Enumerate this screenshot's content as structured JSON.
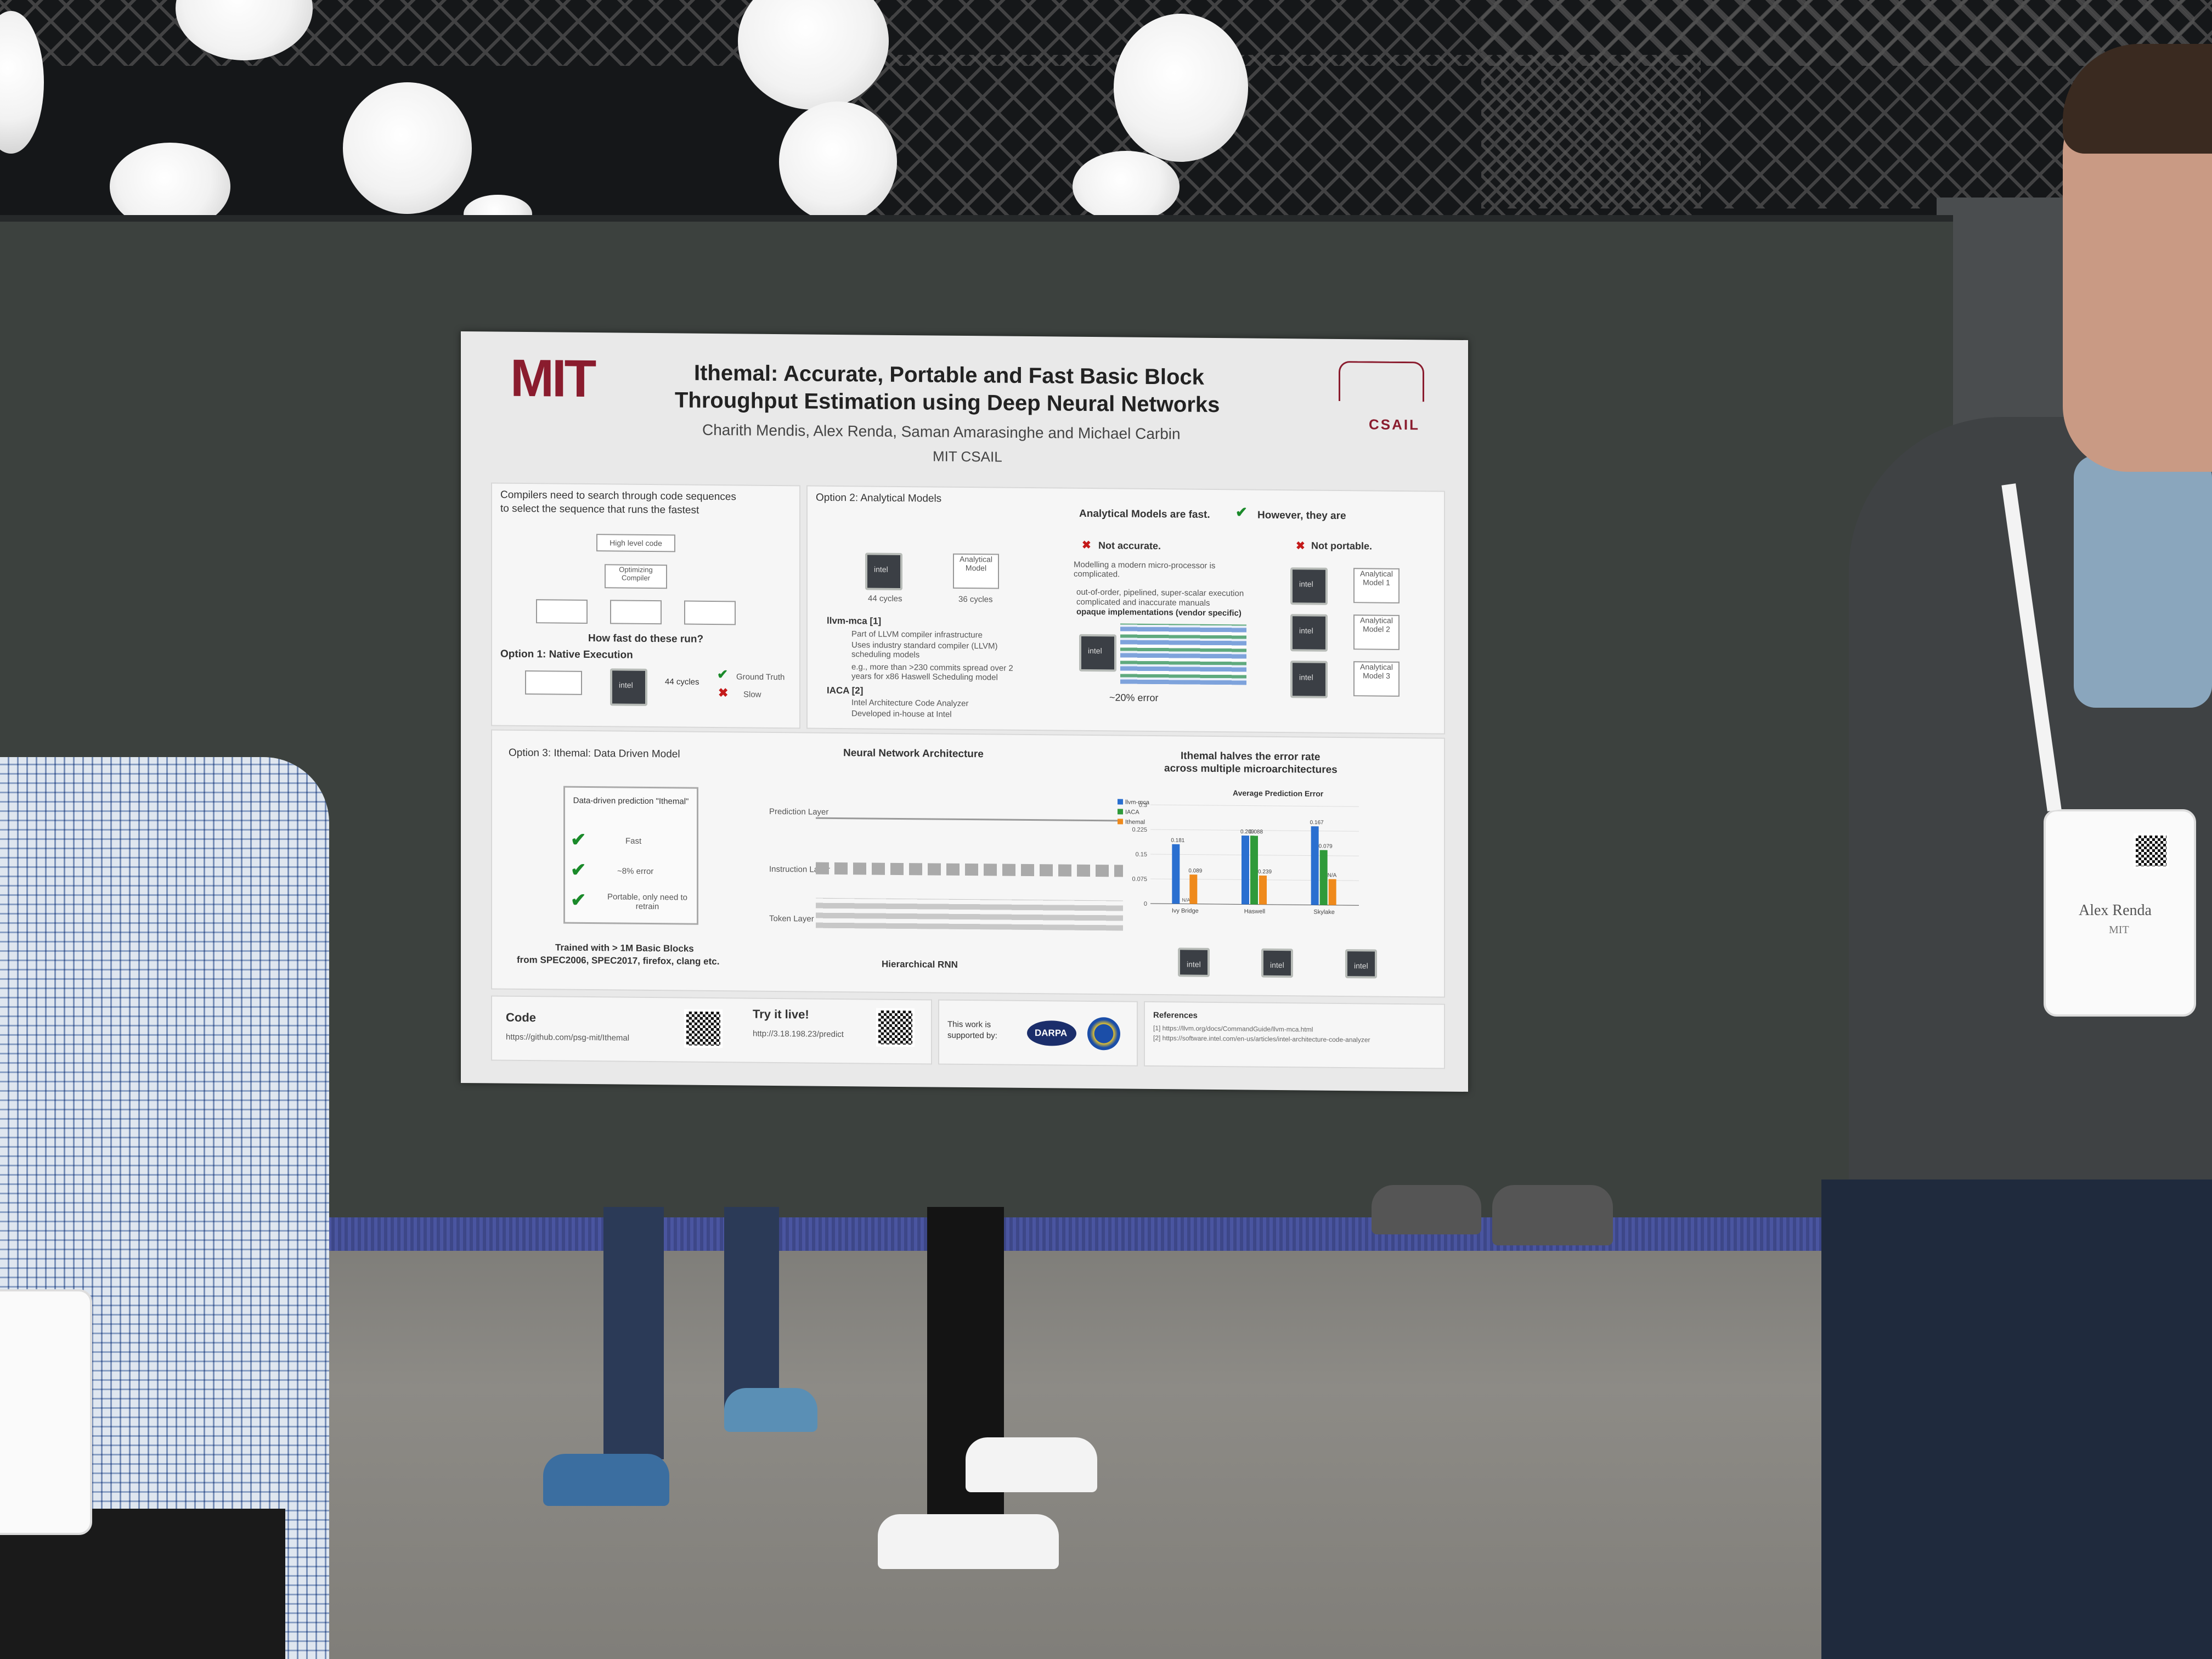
{
  "poster": {
    "logo_left": "MIT",
    "logo_right": "CSAIL",
    "title_line1": "Ithemal: Accurate, Portable and Fast Basic Block",
    "title_line2": "Throughput Estimation using Deep Neural Networks",
    "authors": "Charith Mendis, Alex Renda, Saman Amarasinghe and Michael Carbin",
    "affiliation": "MIT CSAIL",
    "intro": {
      "heading_line1": "Compilers need to search through code sequences",
      "heading_line2": "to select the sequence that runs the fastest",
      "box_high_level": "High level code",
      "box_compiler": "Optimizing Compiler",
      "question": "How fast do these run?",
      "option1": "Option 1: Native Execution",
      "cycles": "44 cycles",
      "ground_truth": "Ground Truth",
      "slow": "Slow"
    },
    "analytical": {
      "heading": "Option 2: Analytical Models",
      "fast_line": "Analytical Models are fast.",
      "however": "However,  they are",
      "not_accurate": "Not accurate.",
      "not_portable": "Not portable.",
      "left_cycles": "44 cycles",
      "right_cycles": "36 cycles",
      "analytical_model": "Analytical Model",
      "llvm_heading": "llvm-mca [1]",
      "llvm_bullets": [
        "Part of LLVM compiler infrastructure",
        "Uses industry standard compiler (LLVM) scheduling models",
        "e.g., more than >230 commits spread over 2 years for x86 Haswell Scheduling model"
      ],
      "iaca_heading": "IACA [2]",
      "iaca_bullets": [
        "Intel Architecture Code Analyzer",
        "Developed in-house at Intel"
      ],
      "modelling_note": "Modelling a modern micro-processor is complicated.",
      "complications": [
        "out-of-order, pipelined, super-scalar execution",
        "complicated and inaccurate manuals",
        "opaque implementations (vendor specific)"
      ],
      "error": "~20% error",
      "models": [
        "Analytical Model 1",
        "Analytical Model 2",
        "Analytical Model 3"
      ]
    },
    "ithemal": {
      "heading": "Option 3: Ithemal: Data Driven Model",
      "box_title": "Data-driven prediction \"Ithemal\"",
      "features": [
        "Fast",
        "~8% error",
        "Portable, only need to retrain"
      ],
      "trained_line1": "Trained with > 1M Basic Blocks",
      "trained_line2": "from SPEC2006, SPEC2017, firefox, clang etc.",
      "nn_heading": "Neural Network Architecture",
      "nn_caption": "Hierarchical RNN",
      "layers": [
        "Prediction Layer",
        "Instruction Layer",
        "Token Layer"
      ],
      "halves_line1": "Ithemal halves the error rate",
      "halves_line2": "across multiple microarchitectures"
    },
    "footer": {
      "code_label": "Code",
      "code_url": "https://github.com/psg-mit/Ithemal",
      "try_label": "Try it live!",
      "try_url": "http://3.18.198.23/predict",
      "support_line1": "This work is",
      "support_line2": "supported by:",
      "darpa": "DARPA",
      "references_heading": "References",
      "ref1": "[1] https://llvm.org/docs/CommandGuide/llvm-mca.html",
      "ref2": "[2] https://software.intel.com/en-us/articles/intel-architecture-code-analyzer"
    }
  },
  "chart_data": {
    "type": "bar",
    "title": "Average Prediction Error",
    "categories": [
      "Ivy Bridge",
      "Haswell",
      "Skylake"
    ],
    "series": [
      {
        "name": "llvm-mca",
        "color": "#2a6fd0",
        "values": [
          0.181,
          0.209,
          0.239
        ]
      },
      {
        "name": "IACA",
        "color": "#2f9a3a",
        "values": [
          null,
          0.209,
          0.167
        ]
      },
      {
        "name": "Ithemal",
        "color": "#ef8a1c",
        "values": [
          0.089,
          0.088,
          0.079
        ]
      }
    ],
    "data_labels": [
      "0.181",
      "0.089",
      "0.209",
      "0.088",
      "0.239",
      "0.167",
      "0.079",
      "N/A"
    ],
    "yticks": [
      "0.3",
      "0.225",
      "0.15",
      "0.075",
      "0"
    ],
    "ylim": [
      0,
      0.3
    ]
  },
  "badge": {
    "name": "Alex Renda",
    "org": "MIT"
  },
  "colors": {
    "mit_red": "#8a1c2e",
    "board": "#3c413e",
    "check_green": "#1a8a2a",
    "cross_red": "#c41a1a"
  }
}
